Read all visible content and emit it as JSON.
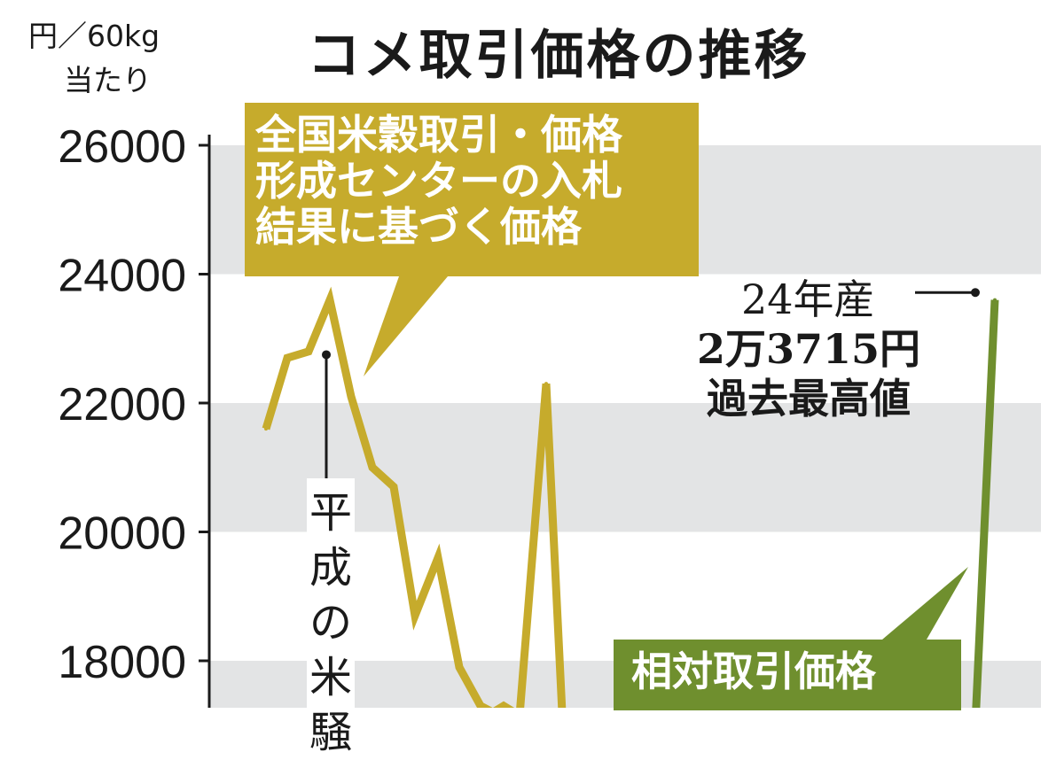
{
  "header": {
    "title": "コメ取引価格の推移"
  },
  "unit_label": {
    "line1": "円／60kg",
    "line2": "当たり"
  },
  "callouts": {
    "center_price_lines": [
      "全国米穀取引・価格",
      "形成センターの入札",
      "結果に基づく価格"
    ],
    "relative_price": "相対取引価格"
  },
  "annotations": {
    "heisei": "平成の米騒",
    "peak_lines": [
      "24年産",
      "2万3715円",
      "過去最高値"
    ]
  },
  "colors": {
    "center_series": "#c6ab2c",
    "relative_series": "#6f8f2e",
    "band": "#e3e4e5",
    "text": "#1a1a1a"
  },
  "chart_data": {
    "type": "line",
    "title": "コメ取引価格の推移",
    "ylabel": "円／60kg 当たり",
    "ylim": [
      17300,
      26000
    ],
    "yticks": [
      18000,
      20000,
      22000,
      24000,
      26000
    ],
    "grid": "alternating bands",
    "series": [
      {
        "name": "全国米穀取引・価格形成センターの入札結果に基づく価格",
        "color": "#c6ab2c",
        "values": [
          21600,
          22700,
          22800,
          23600,
          22100,
          21000,
          20700,
          18700,
          19600,
          17900,
          17300,
          17200,
          17300,
          17150,
          22300,
          17200
        ]
      },
      {
        "name": "相対取引価格",
        "color": "#6f8f2e",
        "values": [
          17000,
          23600
        ]
      }
    ],
    "annotations": [
      {
        "text": "平成の米騒",
        "series": 0,
        "point_index": 3
      },
      {
        "text": "24年産 2万3715円 過去最高値",
        "series": 1,
        "value": 23715
      }
    ]
  }
}
